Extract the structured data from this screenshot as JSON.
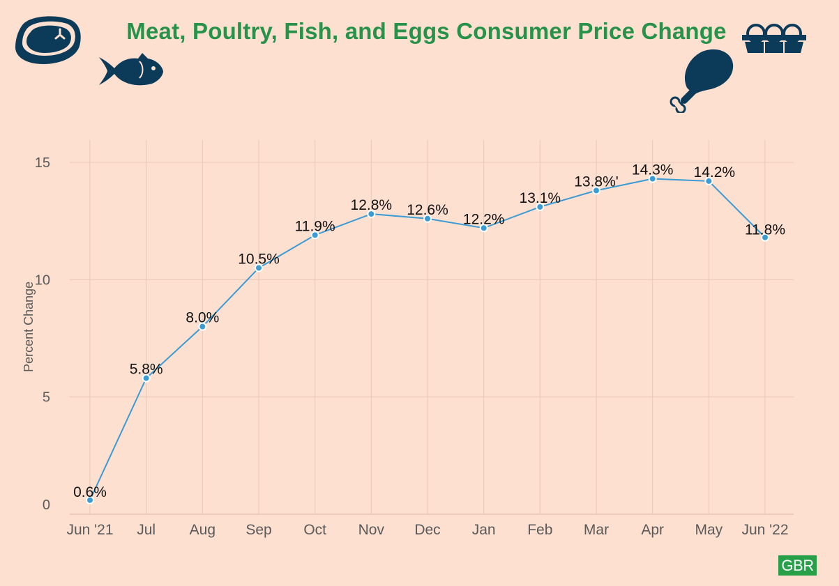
{
  "header": {
    "title": "Meat, Poultry, Fish, and Eggs Consumer Price Change"
  },
  "icons": [
    "steak-icon",
    "fish-icon",
    "drumstick-icon",
    "eggs-icon"
  ],
  "brand": {
    "label": "GBR"
  },
  "colors": {
    "background": "#fde0d0",
    "title": "#27924a",
    "line": "#3b9bd4",
    "icon": "#0c3b59",
    "brand": "#28a04a"
  },
  "chart_data": {
    "type": "line",
    "title": "Meat, Poultry, Fish, and Eggs Consumer Price Change",
    "xlabel": "",
    "ylabel": "Percent Change",
    "ylim": [
      0,
      16
    ],
    "yticks": [
      0,
      5,
      10,
      15
    ],
    "grid": true,
    "categories": [
      "Jun '21",
      "Jul",
      "Aug",
      "Sep",
      "Oct",
      "Nov",
      "Dec",
      "Jan",
      "Feb",
      "Mar",
      "Apr",
      "May",
      "Jun '22"
    ],
    "values": [
      0.6,
      5.8,
      8.0,
      10.5,
      11.9,
      12.8,
      12.6,
      12.2,
      13.1,
      13.8,
      14.3,
      14.2,
      11.8
    ],
    "data_labels": [
      "0.6%",
      "5.8%",
      "8.0%",
      "10.5%",
      "11.9%",
      "12.8%",
      "12.6%",
      "12.2%",
      "13.1%",
      "13.8%'",
      "14.3%",
      "14.2%",
      "11.8%"
    ]
  }
}
